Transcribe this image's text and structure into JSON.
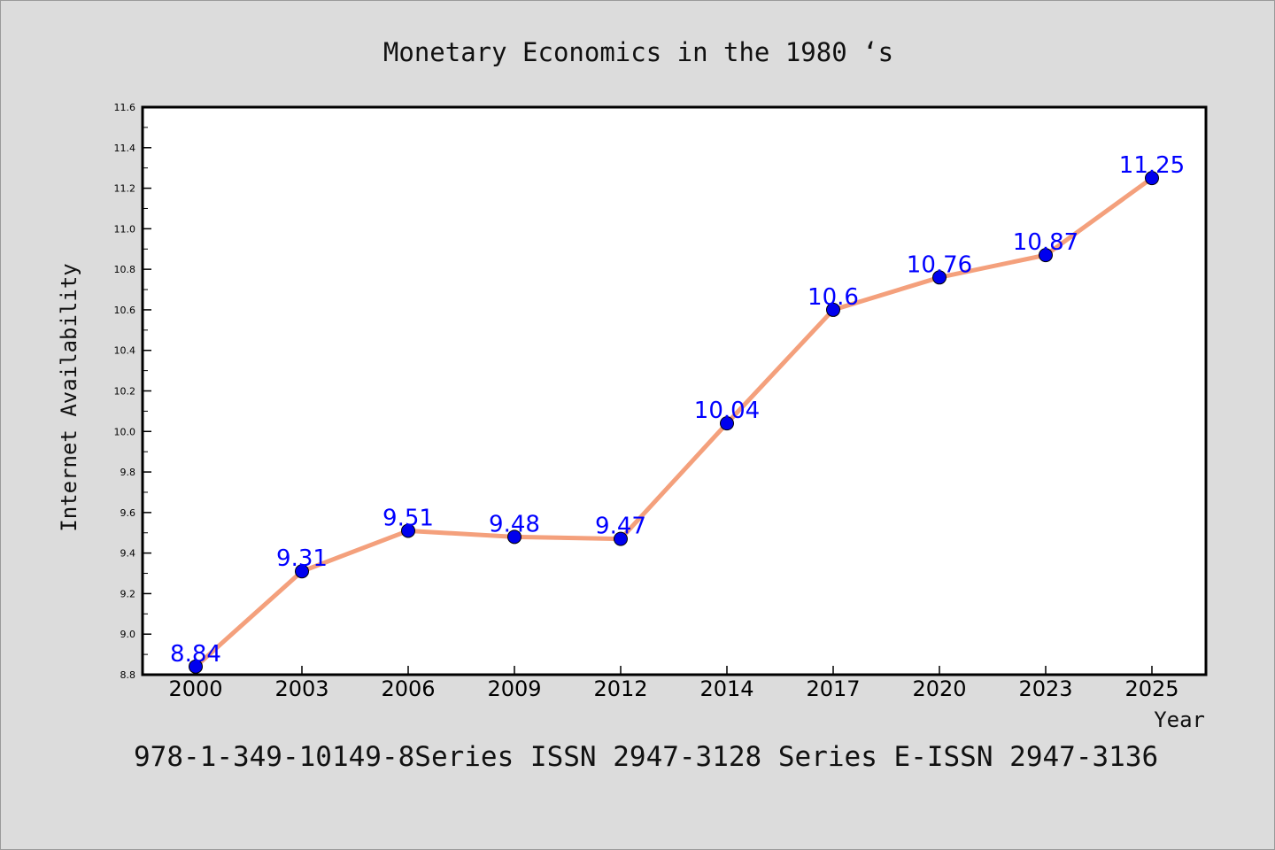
{
  "chart_data": {
    "type": "line",
    "title": "Monetary Economics in the 1980 ‘s",
    "xlabel": "Year",
    "ylabel": "Internet Availability",
    "categories": [
      "2000",
      "2003",
      "2006",
      "2009",
      "2012",
      "2014",
      "2017",
      "2020",
      "2023",
      "2025"
    ],
    "series": [
      {
        "values": [
          8.84,
          9.31,
          9.51,
          9.48,
          9.47,
          10.04,
          10.6,
          10.76,
          10.87,
          11.25
        ],
        "labels": [
          "8.84",
          "9.31",
          "9.51",
          "9.48",
          "9.47",
          "10.04",
          "10.6",
          "10.76",
          "10.87",
          "11.25"
        ]
      }
    ],
    "ylim": [
      8.8,
      11.6
    ],
    "yticks": [
      "8.8",
      "9.0",
      "9.2",
      "9.4",
      "9.6",
      "9.8",
      "10.0",
      "10.2",
      "10.4",
      "10.6",
      "10.8",
      "11.0",
      "11.2",
      "11.4",
      "11.6"
    ],
    "grid": false,
    "legend": "none",
    "colors": {
      "line": "#f4a07c",
      "marker": "#0000ee",
      "data_label": "#0000ff",
      "background": "#dcdcdc",
      "plot_background": "#ffffff"
    }
  },
  "footer": {
    "text": "978-1-349-10149-8Series ISSN 2947-3128 Series E-ISSN 2947-3136"
  }
}
